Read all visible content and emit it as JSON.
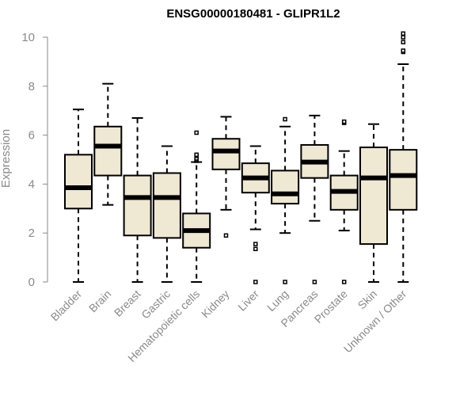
{
  "chart_data": {
    "type": "boxplot",
    "title": "ENSG00000180481 - GLIPR1L2",
    "xlabel": "",
    "ylabel": "Expression",
    "ylim": [
      0,
      10
    ],
    "yticks": [
      0,
      2,
      4,
      6,
      8,
      10
    ],
    "grid": false,
    "box_color": "#efe8d2",
    "median_color": "#000000",
    "categories": [
      "Bladder",
      "Brain",
      "Breast",
      "Gastric",
      "Hematopoietic cells",
      "Kidney",
      "Liver",
      "Lung",
      "Pancreas",
      "Prostate",
      "Skin",
      "Unknown / Other"
    ],
    "boxes": [
      {
        "name": "Bladder",
        "min": 0.0,
        "q1": 3.0,
        "median": 3.85,
        "q3": 5.2,
        "max": 7.05,
        "outliers": []
      },
      {
        "name": "Brain",
        "min": 3.15,
        "q1": 4.35,
        "median": 5.55,
        "q3": 6.35,
        "max": 8.1,
        "outliers": []
      },
      {
        "name": "Breast",
        "min": 0.0,
        "q1": 1.9,
        "median": 3.45,
        "q3": 4.35,
        "max": 6.7,
        "outliers": []
      },
      {
        "name": "Gastric",
        "min": 0.0,
        "q1": 1.8,
        "median": 3.45,
        "q3": 4.45,
        "max": 5.55,
        "outliers": []
      },
      {
        "name": "Hematopoietic cells",
        "min": 0.0,
        "q1": 1.4,
        "median": 2.1,
        "q3": 2.8,
        "max": 4.9,
        "outliers": [
          4.95,
          5.0,
          5.05,
          5.15,
          5.2,
          6.1
        ]
      },
      {
        "name": "Kidney",
        "min": 2.95,
        "q1": 4.6,
        "median": 5.35,
        "q3": 5.85,
        "max": 6.75,
        "outliers": [
          1.9
        ]
      },
      {
        "name": "Liver",
        "min": 2.15,
        "q1": 3.65,
        "median": 4.25,
        "q3": 4.85,
        "max": 5.55,
        "outliers": [
          0.0,
          1.35,
          1.55
        ]
      },
      {
        "name": "Lung",
        "min": 2.0,
        "q1": 3.2,
        "median": 3.6,
        "q3": 4.55,
        "max": 6.35,
        "outliers": [
          0.0,
          6.65
        ]
      },
      {
        "name": "Pancreas",
        "min": 2.5,
        "q1": 4.25,
        "median": 4.9,
        "q3": 5.6,
        "max": 6.8,
        "outliers": [
          0.0
        ]
      },
      {
        "name": "Prostate",
        "min": 2.1,
        "q1": 2.95,
        "median": 3.7,
        "q3": 4.35,
        "max": 5.35,
        "outliers": [
          0.0,
          6.5,
          6.55
        ]
      },
      {
        "name": "Skin",
        "min": 0.0,
        "q1": 1.55,
        "median": 4.25,
        "q3": 5.5,
        "max": 6.45,
        "outliers": []
      },
      {
        "name": "Unknown / Other",
        "min": 0.0,
        "q1": 2.95,
        "median": 4.35,
        "q3": 5.4,
        "max": 8.9,
        "outliers": [
          9.4,
          9.45,
          9.8,
          10.0,
          10.15
        ]
      }
    ]
  }
}
